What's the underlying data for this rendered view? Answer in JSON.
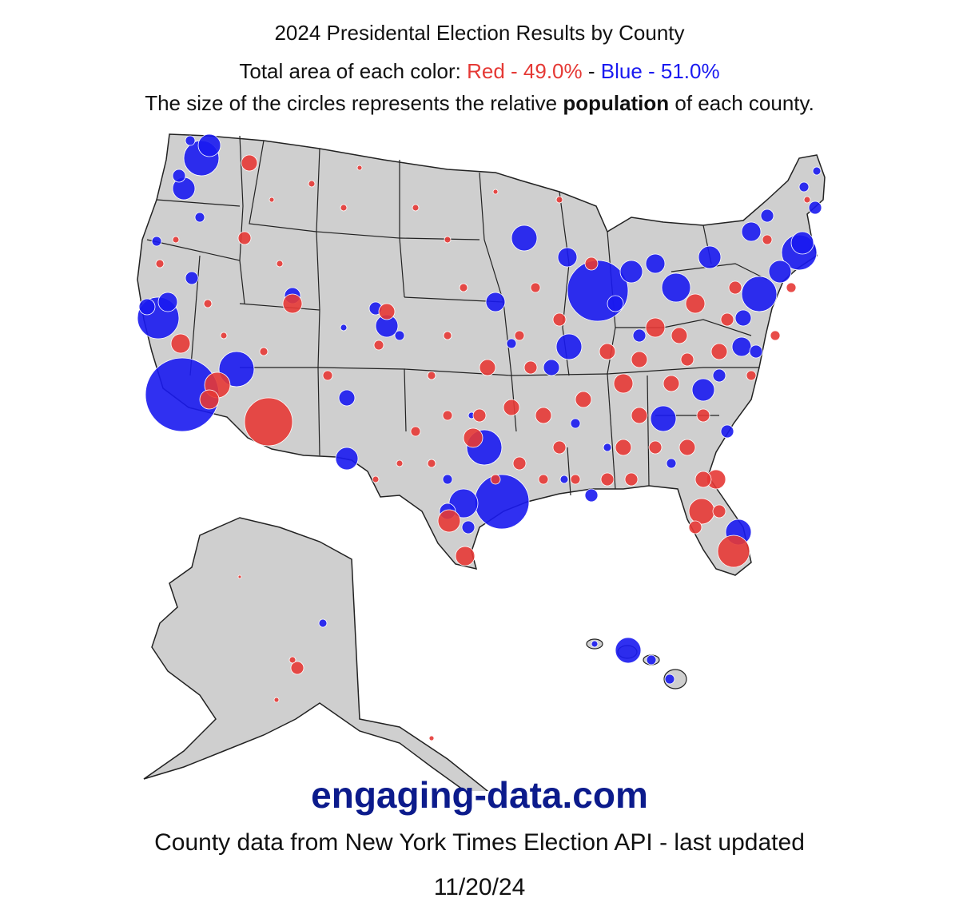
{
  "header": {
    "title": "2024 Presidental Election Results by County",
    "area_prefix": "Total area of each color: ",
    "red_label": "Red - 49.0%",
    "separator": " - ",
    "blue_label": "Blue - 51.0%",
    "size_before": "The size of the circles represents the relative ",
    "size_bold": "population",
    "size_after": " of each county."
  },
  "footer": {
    "site": "engaging-data.com",
    "source": "County data from New York Times Election API - last updated",
    "date": "11/20/24"
  },
  "colors": {
    "red": "#e53935",
    "blue": "#1a1af0",
    "land": "#cfcfcf",
    "border": "#222222",
    "site_text": "#0c1b8c"
  },
  "map_data": {
    "area_share": {
      "red": 49.0,
      "blue": 51.0
    }
  }
}
